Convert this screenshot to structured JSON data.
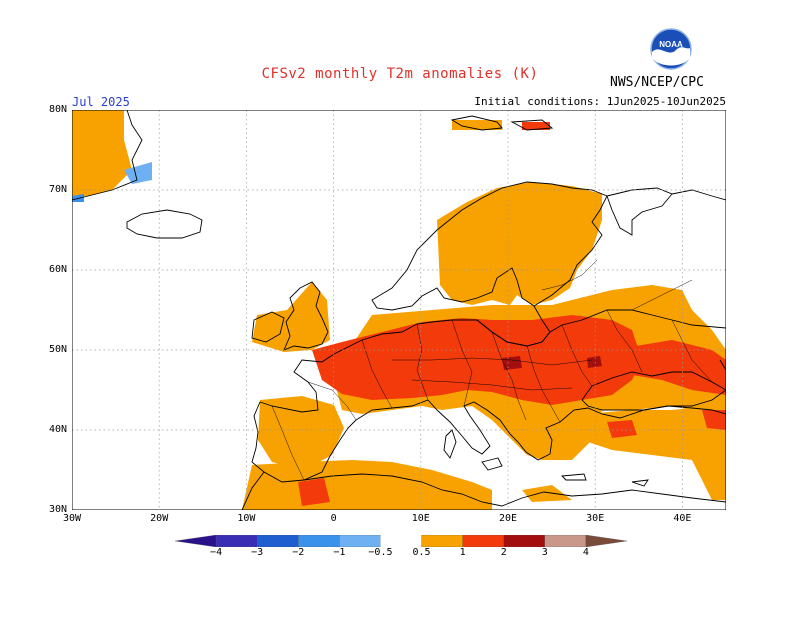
{
  "title": "CFSv2 monthly T2m anomalies (K)",
  "month": "Jul 2025",
  "initial_conditions": "Initial conditions: 1Jun2025-10Jun2025",
  "agency": "NWS/NCEP/CPC",
  "logo_text": "NOAA",
  "colors": {
    "title": "#e0302a",
    "month": "#2a3ecc",
    "grid": "#9a9a9a",
    "coast": "#000000",
    "warm1": "#f7a200",
    "warm2": "#f23a0a",
    "warm3": "#a30f0f",
    "warm4": "#c9988a",
    "warm5": "#7a4a3a",
    "cool1": "#6fb0f2",
    "cool2": "#3b92ea",
    "cool3": "#1e5ecf",
    "cool4": "#3a2eb5",
    "cool5": "#2a128a"
  },
  "map": {
    "lon_range": [
      -30,
      45
    ],
    "lat_range": [
      30,
      80
    ],
    "lat_labels": [
      "30N",
      "40N",
      "50N",
      "60N",
      "70N",
      "80N"
    ],
    "lon_labels": [
      "30W",
      "20W",
      "10W",
      "0",
      "10E",
      "20E",
      "30E",
      "40E"
    ]
  },
  "colorbar": {
    "ticks": [
      "−4",
      "−3",
      "−2",
      "−1",
      "−0.5",
      "0.5",
      "1",
      "2",
      "3",
      "4"
    ]
  }
}
